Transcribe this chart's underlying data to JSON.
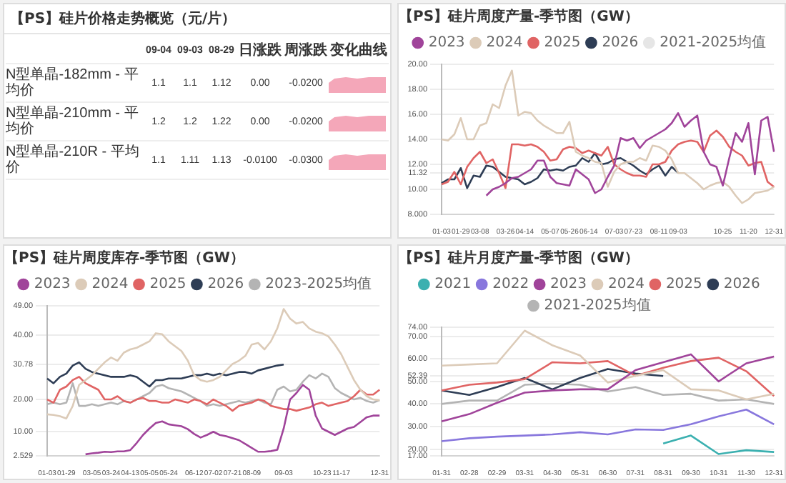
{
  "chart_data": [
    {
      "type": "other",
      "title": "【PS】硅片价格走势概览（元/片）",
      "annotations": [
        "09-04",
        "09-03",
        "08-29",
        "日涨跌",
        "周涨跌",
        "变化曲线",
        "N型单晶-182mm - 平均价",
        "1.1",
        "1.1",
        "1.12",
        "0.00",
        "-0.0200",
        "N型单晶-210mm - 平均价",
        "1.2",
        "1.2",
        "1.22",
        "0.00",
        "-0.0200",
        "N型单晶-210R - 平均价",
        "1.1",
        "1.11",
        "1.13",
        "-0.0100",
        "-0.0300"
      ]
    },
    {
      "type": "line",
      "title": "【PS】硅片周度产量-季节图（GW）",
      "legend": "top",
      "grid": "y",
      "marker": "none",
      "categories": [
        "01-03",
        null,
        null,
        "01-29",
        null,
        null,
        "03-08",
        null,
        null,
        null,
        "03-26",
        null,
        null,
        "04-14",
        null,
        null,
        null,
        "05-07",
        null,
        null,
        "05-26",
        null,
        null,
        "06-14",
        null,
        null,
        null,
        "07-03",
        null,
        null,
        "07-23",
        null,
        null,
        null,
        "08-11",
        null,
        null,
        "09-03",
        null,
        null,
        null,
        null,
        null,
        null,
        "10-25",
        null,
        null,
        null,
        "11-20",
        null,
        null,
        null,
        "12-31"
      ],
      "ylim": [
        8,
        20
      ],
      "yticks": [
        {
          "value": 8,
          "label": "8.000"
        },
        {
          "value": 10,
          "label": "10.00"
        },
        {
          "value": 11.32,
          "label": "11.32"
        },
        {
          "value": 12,
          "label": "12.00"
        },
        {
          "value": 14,
          "label": "14.00"
        },
        {
          "value": 16,
          "label": "16.00"
        },
        {
          "value": 18,
          "label": "18.00"
        },
        {
          "value": 20,
          "label": "20.00"
        }
      ],
      "series": [
        {
          "name": "2023",
          "color": "#a0449a",
          "values": [
            null,
            null,
            null,
            null,
            null,
            null,
            null,
            9.5,
            10.0,
            10.2,
            10.5,
            10.9,
            11.0,
            11.3,
            11.6,
            12.3,
            12.3,
            11.0,
            10.5,
            10.4,
            10.3,
            11.6,
            11.2,
            10.8,
            9.7,
            10.0,
            11.0,
            11.9,
            14.1,
            13.9,
            14.1,
            13.3,
            13.9,
            14.2,
            14.5,
            14.8,
            15.3,
            16.1,
            15.0,
            15.5,
            15.9,
            13.0,
            12.0,
            11.8,
            10.3,
            12.5,
            14.5,
            13.8,
            15.3,
            11.2,
            15.5,
            15.8,
            13.0
          ]
        },
        {
          "name": "2024",
          "color": "#dccbb8",
          "values": [
            14.0,
            13.9,
            14.4,
            15.7,
            14.0,
            14.0,
            15.1,
            15.3,
            16.8,
            16.5,
            18.3,
            19.5,
            15.9,
            16.2,
            16.1,
            15.5,
            15.1,
            14.8,
            14.5,
            14.5,
            15.4,
            13.0,
            12.7,
            12.5,
            12.2,
            12.1,
            10.2,
            11.4,
            12.0,
            12.2,
            12.2,
            12.5,
            12.3,
            13.5,
            13.4,
            13.1,
            12.4,
            11.3,
            11.3,
            10.9,
            10.5,
            10.0,
            10.3,
            10.5,
            10.6,
            10.2,
            9.5,
            8.9,
            9.2,
            9.7,
            9.8,
            9.9,
            10.2
          ]
        },
        {
          "name": "2025",
          "color": "#e06464",
          "values": [
            10.4,
            10.6,
            11.4,
            10.4,
            11.8,
            12.5,
            13.0,
            12.1,
            12.4,
            11.3,
            10.1,
            13.6,
            13.6,
            13.5,
            13.6,
            13.4,
            13.0,
            12.3,
            12.4,
            13.2,
            13.4,
            13.3,
            12.9,
            13.1,
            12.9,
            12.7,
            13.4,
            12.0,
            11.6,
            11.3,
            11.1,
            11.1,
            11.0,
            12.0,
            12.0,
            12.2,
            13.1,
            13.6,
            13.8,
            13.9,
            13.8,
            13.0,
            14.3,
            14.7,
            14.2,
            13.4,
            13.0,
            12.7,
            11.9,
            12.1,
            12.2,
            10.6,
            10.2
          ]
        },
        {
          "name": "2026",
          "color": "#2e3d55",
          "values": [
            10.5,
            10.8,
            10.8,
            11.7,
            10.1,
            11.1,
            11.0,
            11.9,
            11.8,
            11.4,
            11.0,
            10.9,
            10.8,
            10.4,
            10.6,
            10.9,
            11.6,
            11.5,
            11.6,
            11.5,
            11.8,
            11.9,
            12.5,
            12.2,
            12.9,
            12.0,
            12.1,
            12.4,
            12.5,
            12.2,
            11.9,
            11.5,
            11.2,
            11.6,
            11.9,
            11.1,
            11.8,
            11.32,
            null,
            null,
            null,
            null,
            null,
            null,
            null,
            null,
            null,
            null,
            null,
            null,
            null,
            null,
            null
          ]
        },
        {
          "name": "2021-2025均值",
          "color": "#e6e6e6",
          "values": [
            null,
            null,
            null,
            null,
            null,
            null,
            null,
            null,
            null,
            null,
            null,
            null,
            null,
            null,
            null,
            null,
            null,
            null,
            null,
            null,
            null,
            null,
            null,
            null,
            null,
            null,
            null,
            null,
            null,
            null,
            null,
            null,
            null,
            null,
            null,
            null,
            null,
            null,
            null,
            null,
            null,
            null,
            null,
            null,
            null,
            null,
            null,
            null,
            null,
            null,
            null,
            null,
            null
          ]
        }
      ]
    },
    {
      "type": "line",
      "title": "【PS】硅片周度库存-季节图（GW）",
      "legend": "top",
      "grid": "y",
      "marker": "none",
      "categories": [
        "01-03",
        null,
        null,
        "01-29",
        null,
        null,
        null,
        "03-05",
        null,
        null,
        "03-24",
        null,
        null,
        "04-13",
        null,
        null,
        "05-05",
        null,
        null,
        "05-24",
        null,
        null,
        null,
        "06-12",
        null,
        null,
        "07-02",
        null,
        null,
        "07-21",
        null,
        null,
        "08-09",
        null,
        null,
        null,
        null,
        "09-03",
        null,
        null,
        null,
        null,
        null,
        "10-23",
        null,
        null,
        "11-17",
        null,
        null,
        null,
        null,
        null,
        "12-31"
      ],
      "ylim": [
        2.529,
        49
      ],
      "yticks": [
        {
          "value": 2.529,
          "label": "2.529"
        },
        {
          "value": 10,
          "label": "10.00"
        },
        {
          "value": 20,
          "label": "20.00"
        },
        {
          "value": 30.78,
          "label": "30.78"
        },
        {
          "value": 40,
          "label": "40.00"
        },
        {
          "value": 49,
          "label": "49.00"
        }
      ],
      "series": [
        {
          "name": "2023",
          "color": "#a0449a",
          "values": [
            null,
            null,
            null,
            null,
            null,
            null,
            3.0,
            3.3,
            3.5,
            3.8,
            3.7,
            3.9,
            3.9,
            4.3,
            6.5,
            9,
            11,
            12.7,
            13.2,
            12.3,
            12,
            11.7,
            10.8,
            9.3,
            8.2,
            9,
            10,
            9,
            8.6,
            8,
            7.4,
            6.2,
            5,
            3.8,
            3.8,
            4,
            4.4,
            11,
            20,
            22,
            24.5,
            23,
            15,
            11,
            10,
            9,
            10,
            11,
            11.5,
            13,
            14.5,
            15,
            15
          ]
        },
        {
          "name": "2024",
          "color": "#dccbb8",
          "values": [
            15.4,
            15.2,
            14.8,
            14.1,
            18,
            24.5,
            26,
            27.5,
            29.5,
            31.5,
            33,
            32,
            34.5,
            35.5,
            36,
            37,
            38,
            40.5,
            40.2,
            38,
            36.5,
            35,
            32,
            27.5,
            26,
            25.5,
            26,
            27,
            29,
            31,
            32,
            33.5,
            37,
            37.5,
            35.5,
            38,
            42,
            48,
            45,
            43.5,
            44,
            42,
            41,
            40.5,
            39.5,
            37,
            34,
            30,
            26,
            23,
            21,
            20,
            19.7
          ]
        },
        {
          "name": "2025",
          "color": "#e06464",
          "values": [
            20,
            19,
            23,
            24,
            26,
            27,
            25,
            24,
            23,
            20,
            20,
            21,
            19.5,
            19,
            20,
            20.5,
            19.5,
            19.5,
            19,
            19,
            20,
            19.5,
            19,
            20,
            19.5,
            18.5,
            20,
            19,
            18,
            16.5,
            18,
            18.5,
            19,
            20,
            19.5,
            18,
            17.5,
            17,
            17,
            16.5,
            17,
            17.5,
            18.5,
            19,
            18,
            18.5,
            19,
            19.5,
            21,
            23,
            21.5,
            21.5,
            23
          ]
        },
        {
          "name": "2026",
          "color": "#2e3d55",
          "values": [
            26.5,
            25,
            27,
            28,
            30.5,
            31.5,
            29.5,
            28.5,
            28,
            27.5,
            27,
            27,
            27,
            27.5,
            27,
            25.5,
            24,
            26,
            26,
            26.5,
            26.5,
            26.5,
            27,
            27.5,
            27.5,
            28,
            27.5,
            28,
            27.5,
            28,
            28.5,
            28.5,
            28,
            29,
            29.5,
            30,
            30.5,
            30.78,
            null,
            null,
            null,
            null,
            null,
            null,
            null,
            null,
            null,
            null,
            null,
            null,
            null,
            null,
            null
          ]
        },
        {
          "name": "2023-2025均值",
          "color": "#b4b4b4",
          "values": [
            18.5,
            19,
            18.5,
            19,
            25,
            18,
            18,
            18.5,
            18,
            18.5,
            19,
            18.5,
            19.5,
            19,
            20,
            21,
            22,
            24,
            24.5,
            23.5,
            23,
            22.5,
            21.5,
            20.5,
            19.5,
            18,
            18.5,
            18,
            18.5,
            19,
            19.5,
            19,
            19.5,
            20,
            19,
            18.5,
            23,
            24,
            22.5,
            23,
            25.5,
            27.5,
            26.5,
            28,
            27,
            23.5,
            22,
            21,
            20,
            20.5,
            19.5,
            19,
            19.8
          ]
        }
      ]
    },
    {
      "type": "line",
      "title": "【PS】硅片月度产量-季节图（GW）",
      "legend": "top",
      "grid": "y",
      "marker": "none",
      "categories": [
        "01-31",
        "02-28",
        "02-29",
        "03-31",
        "04-30",
        "05-31",
        "06-30",
        "07-31",
        "08-31",
        "09-30",
        "10-31",
        "11-30",
        "12-31"
      ],
      "ylim": [
        17,
        74
      ],
      "yticks": [
        {
          "value": 17,
          "label": "17.00"
        },
        {
          "value": 20,
          "label": "20.00"
        },
        {
          "value": 30,
          "label": "30.00"
        },
        {
          "value": 40,
          "label": "40.00"
        },
        {
          "value": 50,
          "label": "50.00"
        },
        {
          "value": 52.39,
          "label": "52.39"
        },
        {
          "value": 60,
          "label": "60.00"
        },
        {
          "value": 70,
          "label": "70.00"
        },
        {
          "value": 74,
          "label": "74.00"
        }
      ],
      "series": [
        {
          "name": "2021",
          "color": "#3bb0b0",
          "values": [
            null,
            null,
            null,
            null,
            null,
            null,
            null,
            null,
            22.5,
            26,
            17.8,
            19.5,
            18.7
          ]
        },
        {
          "name": "2022",
          "color": "#8877dd",
          "values": [
            23.5,
            24.8,
            25.5,
            26,
            26.5,
            27.5,
            26.5,
            28.7,
            28.5,
            31,
            34.5,
            37.5,
            31
          ]
        },
        {
          "name": "2023",
          "color": "#a0449a",
          "values": [
            32.3,
            35.5,
            40.5,
            45,
            46,
            46.5,
            46.5,
            55,
            58.5,
            62,
            50,
            58,
            61
          ]
        },
        {
          "name": "2024",
          "color": "#dccbb8",
          "values": [
            57,
            57.5,
            58,
            72.5,
            66,
            61.5,
            49.5,
            52.5,
            55,
            46.5,
            46,
            42,
            44.5
          ]
        },
        {
          "name": "2025",
          "color": "#e06464",
          "values": [
            46,
            48.5,
            49.5,
            51,
            58.5,
            58,
            59,
            52.5,
            56,
            59,
            60.5,
            54.5,
            43.5
          ]
        },
        {
          "name": "2026",
          "color": "#2e3d55",
          "values": [
            46,
            44,
            47.5,
            51.5,
            46.5,
            51.5,
            55.5,
            53.5,
            52.39,
            null,
            null,
            null,
            null
          ]
        },
        {
          "name": "2021-2025均值",
          "color": "#b4b4b4",
          "values": [
            40,
            41.5,
            41.5,
            48.5,
            49,
            48.5,
            45.5,
            47.5,
            44,
            44.5,
            41.5,
            42,
            40
          ]
        }
      ]
    }
  ]
}
